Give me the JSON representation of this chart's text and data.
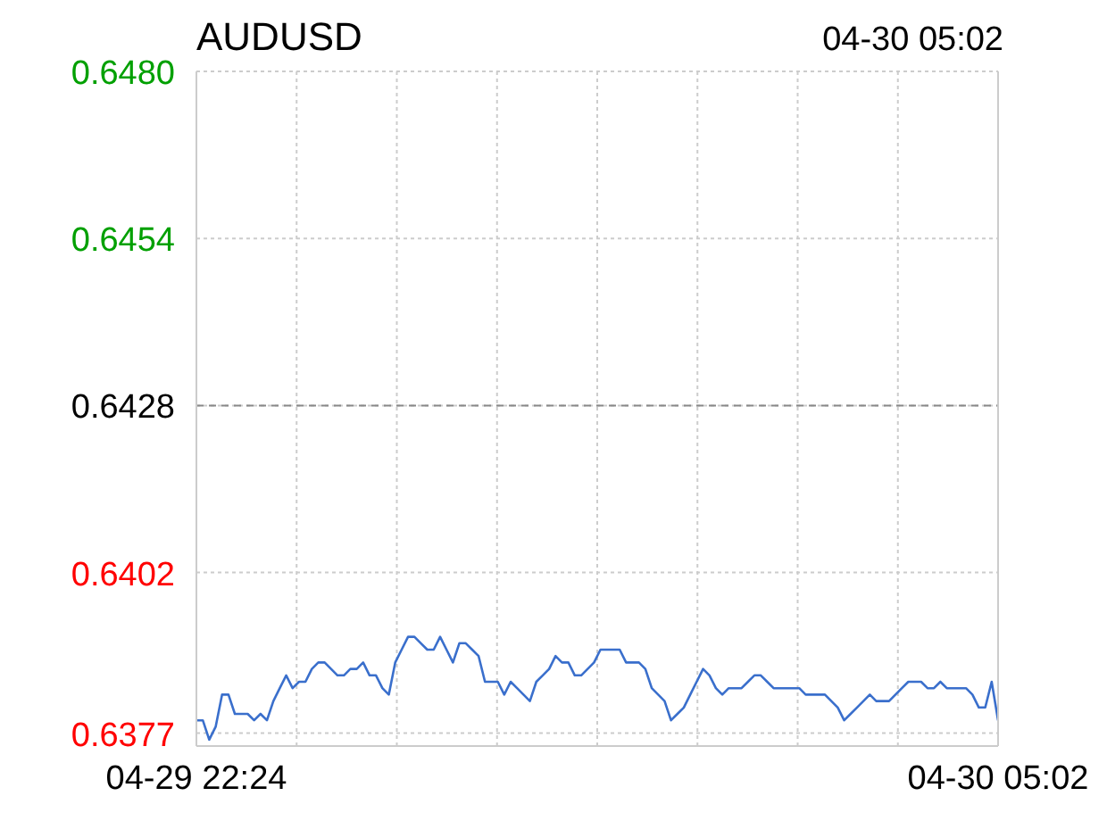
{
  "chart_data": {
    "type": "line",
    "title": "AUDUSD",
    "subtitle": "04-30 05:02",
    "categories": [
      "04-29 22:24",
      null,
      null,
      null,
      null,
      null,
      null,
      null,
      null,
      null,
      null,
      null,
      null,
      null,
      null,
      null,
      null,
      null,
      null,
      null,
      null,
      null,
      null,
      null,
      null,
      null,
      null,
      null,
      null,
      null,
      null,
      null,
      null,
      null,
      null,
      null,
      null,
      null,
      null,
      null,
      null,
      null,
      null,
      null,
      null,
      null,
      null,
      null,
      null,
      null,
      null,
      null,
      null,
      null,
      null,
      null,
      null,
      null,
      null,
      null,
      null,
      null,
      null,
      null,
      null,
      null,
      null,
      null,
      null,
      null,
      null,
      null,
      null,
      null,
      null,
      null,
      null,
      null,
      null,
      null,
      null,
      null,
      null,
      null,
      null,
      null,
      null,
      null,
      null,
      null,
      null,
      null,
      null,
      null,
      null,
      null,
      null,
      null,
      null,
      null,
      null,
      null,
      null,
      null,
      null,
      null,
      null,
      null,
      null,
      null,
      null,
      null,
      null,
      null,
      null,
      null,
      null,
      null,
      null,
      null,
      null,
      null,
      null,
      null,
      null,
      "04-30 05:02"
    ],
    "series": [
      {
        "color": "#3a6fcc",
        "values": [
          0.6379,
          0.6379,
          0.6376,
          0.6378,
          0.6383,
          0.6383,
          0.638,
          0.638,
          0.638,
          0.6379,
          0.638,
          0.6379,
          0.6382,
          0.6384,
          0.6386,
          0.6384,
          0.6385,
          0.6385,
          0.6387,
          0.6388,
          0.6388,
          0.6387,
          0.6386,
          0.6386,
          0.6387,
          0.6387,
          0.6388,
          0.6386,
          0.6386,
          0.6384,
          0.6383,
          0.6388,
          0.639,
          0.6392,
          0.6392,
          0.6391,
          0.639,
          0.639,
          0.6392,
          0.639,
          0.6388,
          0.6391,
          0.6391,
          0.639,
          0.6389,
          0.6385,
          0.6385,
          0.6385,
          0.6383,
          0.6385,
          0.6384,
          0.6383,
          0.6382,
          0.6385,
          0.6386,
          0.6387,
          0.6389,
          0.6388,
          0.6388,
          0.6386,
          0.6386,
          0.6387,
          0.6388,
          0.639,
          0.639,
          0.639,
          0.639,
          0.6388,
          0.6388,
          0.6388,
          0.6387,
          0.6384,
          0.6383,
          0.6382,
          0.6379,
          0.638,
          0.6381,
          0.6383,
          0.6385,
          0.6387,
          0.6386,
          0.6384,
          0.6383,
          0.6384,
          0.6384,
          0.6384,
          0.6385,
          0.6386,
          0.6386,
          0.6385,
          0.6384,
          0.6384,
          0.6384,
          0.6384,
          0.6384,
          0.6383,
          0.6383,
          0.6383,
          0.6383,
          0.6382,
          0.6381,
          0.6379,
          0.638,
          0.6381,
          0.6382,
          0.6383,
          0.6382,
          0.6382,
          0.6382,
          0.6383,
          0.6384,
          0.6385,
          0.6385,
          0.6385,
          0.6384,
          0.6384,
          0.6385,
          0.6384,
          0.6384,
          0.6384,
          0.6384,
          0.6383,
          0.6381,
          0.6381,
          0.6385,
          0.6379
        ]
      }
    ],
    "ylim": [
      0.6375,
      0.648
    ],
    "yticks": [
      {
        "value": 0.6377,
        "label": "0.6377"
      },
      {
        "value": 0.6402,
        "label": "0.6402"
      },
      {
        "value": 0.6428,
        "label": "0.6428"
      },
      {
        "value": 0.6454,
        "label": "0.6454"
      },
      {
        "value": 0.648,
        "label": "0.6480"
      }
    ],
    "ref_lines": [
      {
        "axis": "y",
        "value": 0.6428,
        "color": "#888888",
        "line_style": "dashed"
      }
    ],
    "grid": true,
    "marker": "none",
    "line_style": "solid"
  }
}
